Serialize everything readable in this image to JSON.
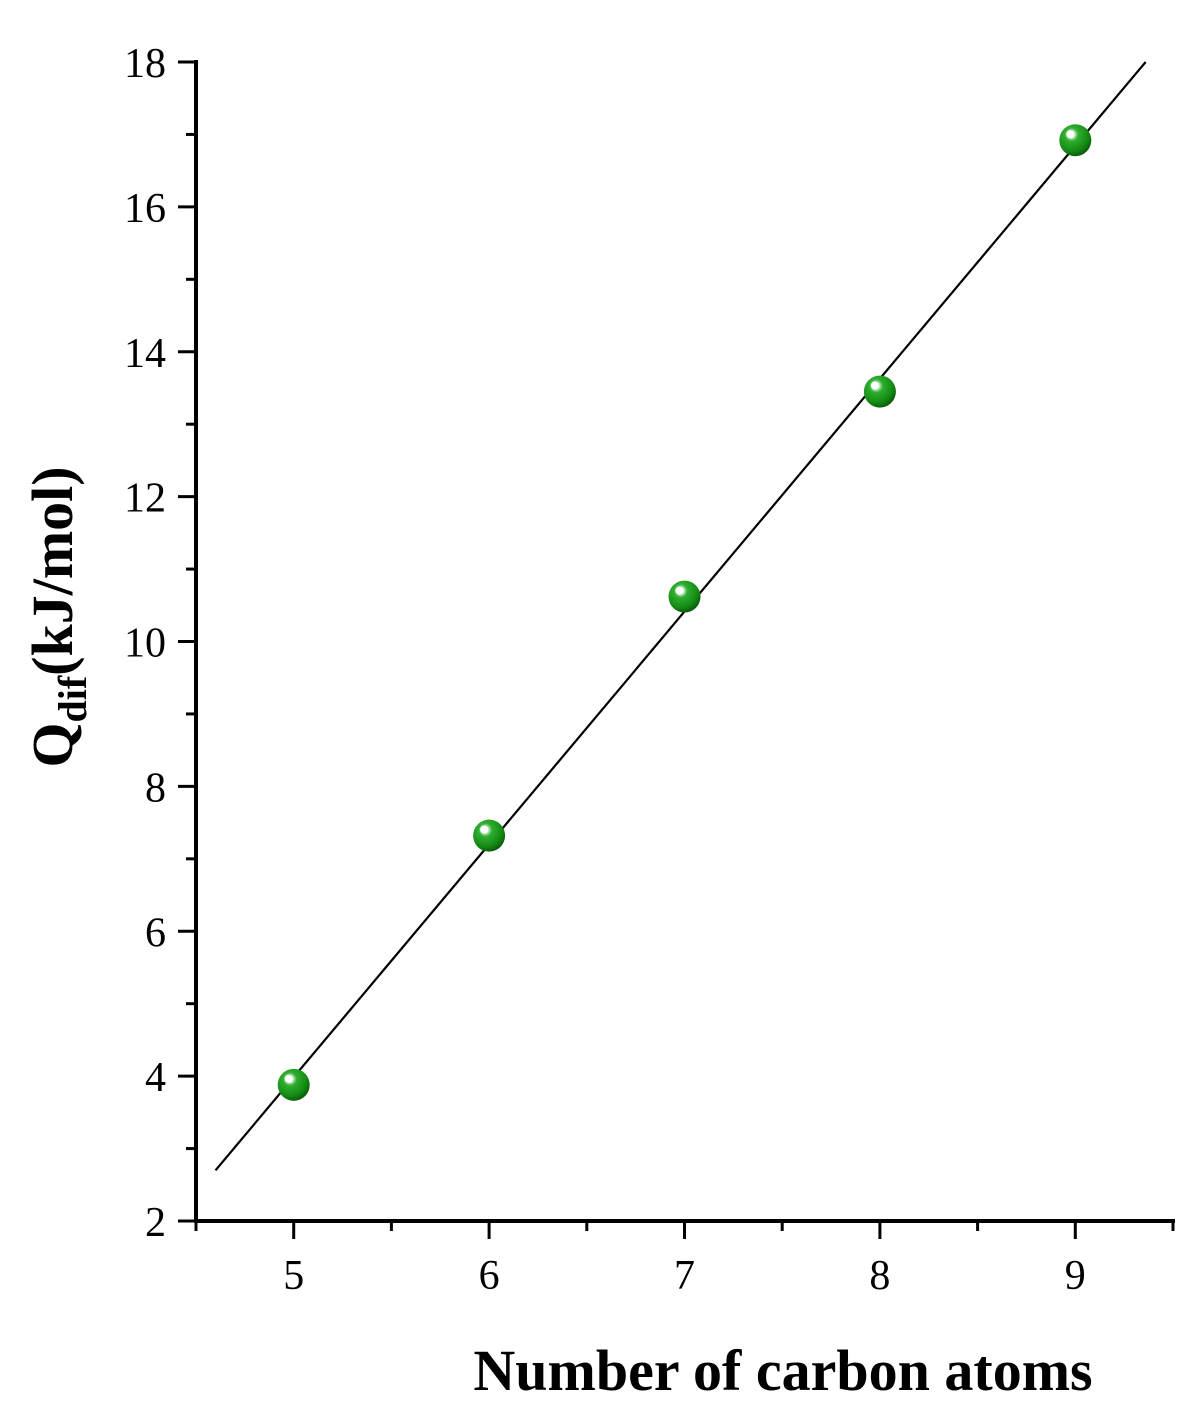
{
  "chart_data": {
    "type": "scatter",
    "title": "",
    "xlabel": "Number of carbon atoms",
    "ylabel": {
      "main": "Q",
      "subscript": "dif",
      "unit": "(kJ/mol)"
    },
    "xlim": [
      4.5,
      9.5
    ],
    "ylim": [
      2,
      18
    ],
    "x_ticks": [
      5,
      6,
      7,
      8,
      9
    ],
    "y_ticks": [
      2,
      4,
      6,
      8,
      10,
      12,
      14,
      16,
      18
    ],
    "x_minor_ticks": [
      4.5,
      5.5,
      6.5,
      7.5,
      8.5,
      9.5
    ],
    "y_minor_ticks": [
      3,
      5,
      7,
      9,
      11,
      13,
      15,
      17
    ],
    "grid": false,
    "series": [
      {
        "x": [
          5,
          6,
          7,
          8,
          9
        ],
        "y": [
          3.88,
          7.32,
          10.62,
          13.45,
          16.92
        ],
        "marker": "sphere",
        "color": "#1a8c1a"
      }
    ],
    "fit_line": {
      "x": [
        4.6,
        9.36
      ],
      "y": [
        2.7,
        18.0
      ],
      "color": "#000000"
    }
  }
}
